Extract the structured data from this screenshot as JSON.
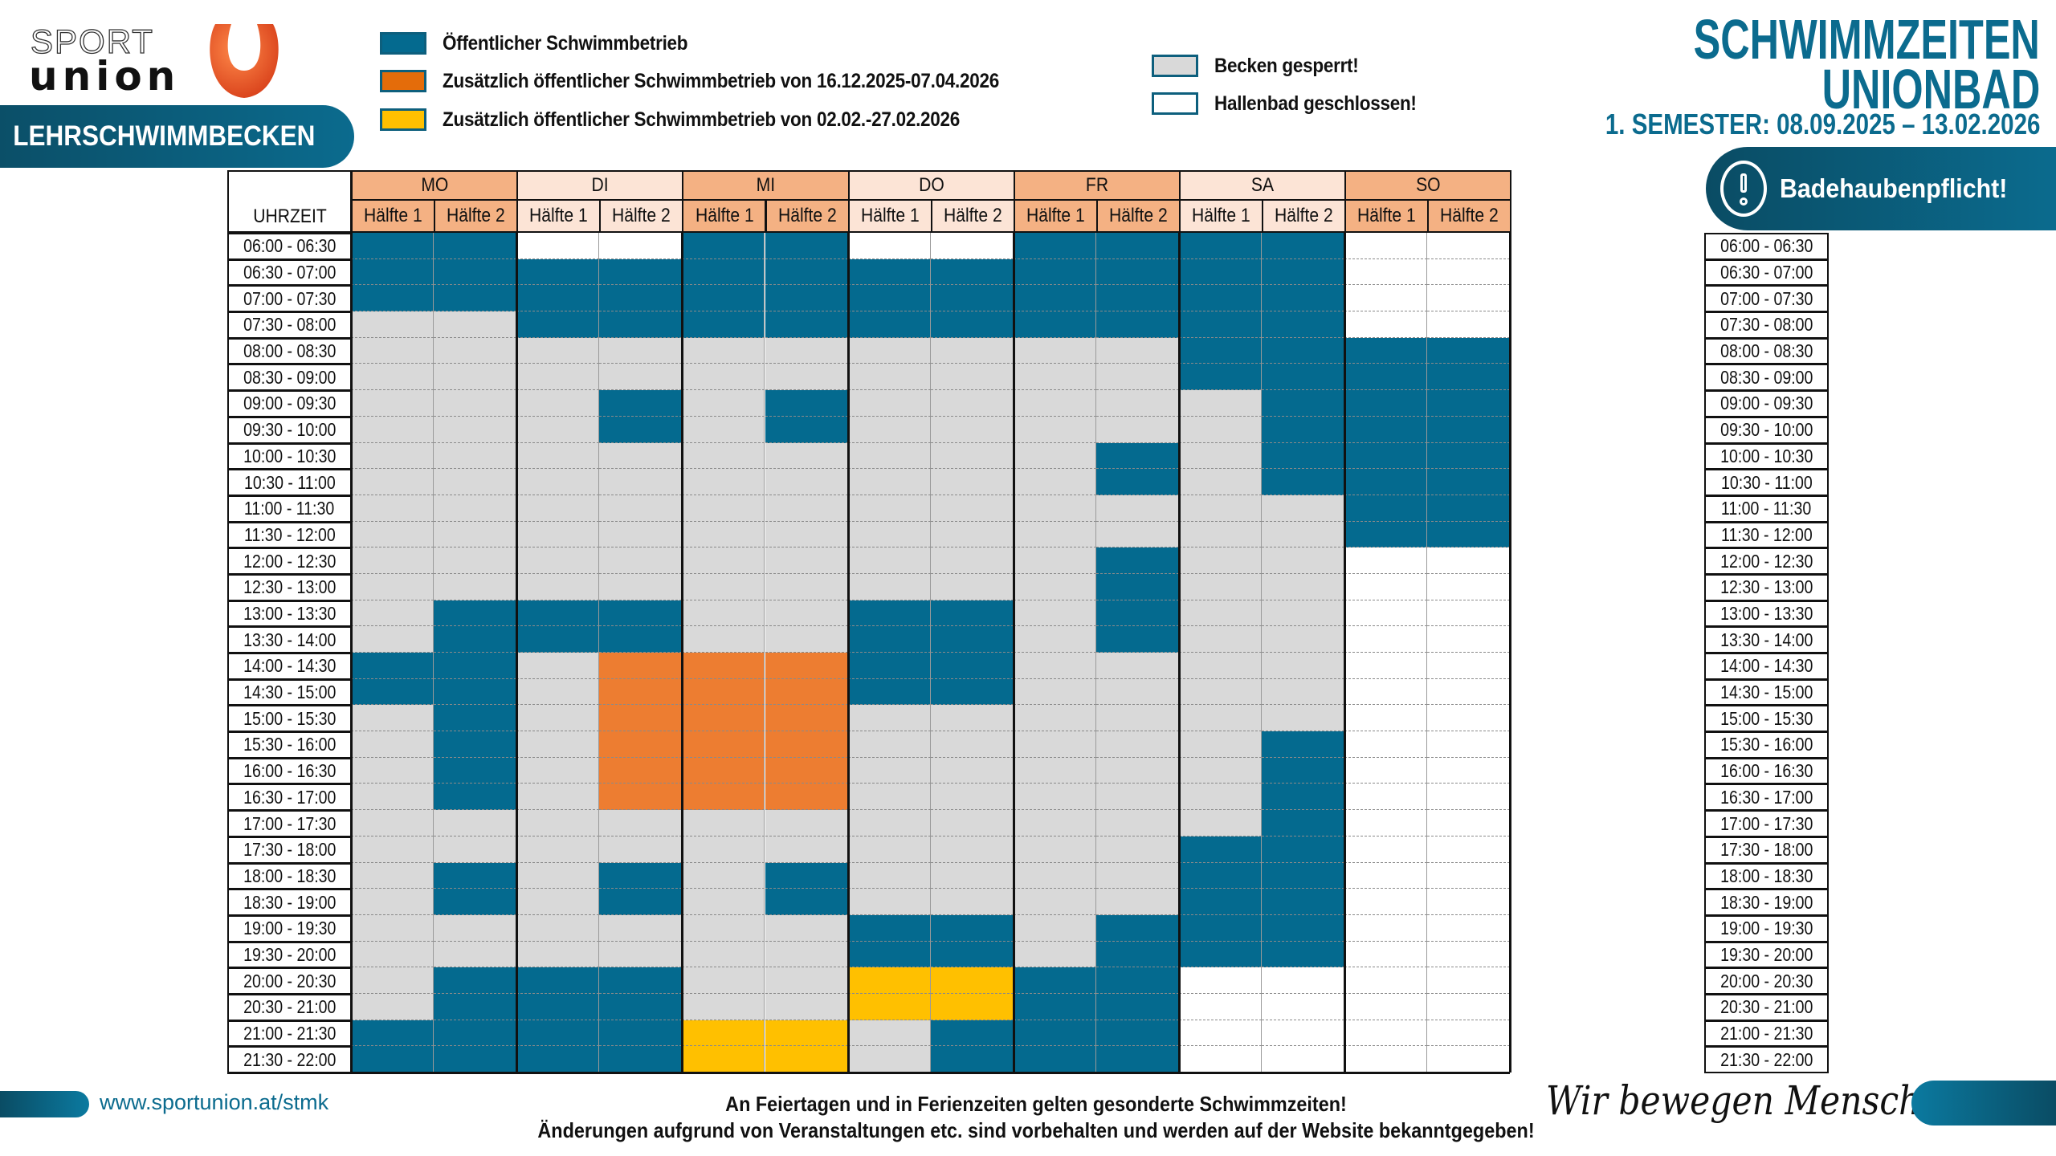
{
  "logo": {
    "line1": "SPORT",
    "line2": "union",
    "mark": "U"
  },
  "banner": {
    "label": "LEHRSCHWIMMBECKEN"
  },
  "legend": [
    {
      "code": "B",
      "label": "Öffentlicher Schwimmbetrieb",
      "color": "#046a8f"
    },
    {
      "code": "O",
      "label": "Zusätzlich öffentlicher Schwimmbetrieb von 16.12.2025-07.04.2026",
      "color": "#e46c0a"
    },
    {
      "code": "Y",
      "label": "Zusätzlich öffentlicher Schwimmbetrieb von 02.02.-27.02.2026",
      "color": "#ffc000"
    },
    {
      "code": "G",
      "label": "Becken gesperrt!",
      "color": "#d9d9d9"
    },
    {
      "code": "W",
      "label": "Hallenbad geschlossen!",
      "color": "#ffffff"
    }
  ],
  "cell_colors": {
    "B": "#046a8f",
    "O": "#ed7d31",
    "Y": "#ffc000",
    "G": "#d9d9d9",
    "W": "#ffffff"
  },
  "title": {
    "line1": "SCHWIMMZEITEN",
    "line2": "UNIONBAD",
    "semester": "1. SEMESTER: 08.09.2025 – 13.02.2026"
  },
  "badge": {
    "label": "Badehaubenpflicht!",
    "icon": "exclamation-circle-icon"
  },
  "schedule": {
    "time_header": "UHRZEIT",
    "days": [
      {
        "label": "MO",
        "color": "#f4b183"
      },
      {
        "label": "DI",
        "color": "#fce4d6"
      },
      {
        "label": "MI",
        "color": "#f4b183"
      },
      {
        "label": "DO",
        "color": "#fce4d6"
      },
      {
        "label": "FR",
        "color": "#f4b183"
      },
      {
        "label": "SA",
        "color": "#fce4d6"
      },
      {
        "label": "SO",
        "color": "#f4b183"
      }
    ],
    "halves": [
      "Hälfte 1",
      "Hälfte 2"
    ],
    "rows": [
      {
        "time": "06:00 - 06:30",
        "cells": "BBWWBBWWBBBBWW"
      },
      {
        "time": "06:30 - 07:00",
        "cells": "BBBBBBBBBBBBWW"
      },
      {
        "time": "07:00 - 07:30",
        "cells": "BBBBBBBBBBBBWW"
      },
      {
        "time": "07:30 - 08:00",
        "cells": "GGBBBBBBBBBBWW"
      },
      {
        "time": "08:00 - 08:30",
        "cells": "GGGGGGGGGGBBBB"
      },
      {
        "time": "08:30 - 09:00",
        "cells": "GGGGGGGGGGBBBB"
      },
      {
        "time": "09:00 - 09:30",
        "cells": "GGGBGBGGGGGBBB"
      },
      {
        "time": "09:30 - 10:00",
        "cells": "GGGBGBGGGGGBBB"
      },
      {
        "time": "10:00 - 10:30",
        "cells": "GGGGGGGGGBGBBB"
      },
      {
        "time": "10:30 - 11:00",
        "cells": "GGGGGGGGGBGBBB"
      },
      {
        "time": "11:00 - 11:30",
        "cells": "GGGGGGGGGGGGBB"
      },
      {
        "time": "11:30 - 12:00",
        "cells": "GGGGGGGGGGGGBB"
      },
      {
        "time": "12:00 - 12:30",
        "cells": "GGGGGGGGGBGGWW"
      },
      {
        "time": "12:30 - 13:00",
        "cells": "GGGGGGGGGBGGWW"
      },
      {
        "time": "13:00 - 13:30",
        "cells": "GBBBGGBBGBGGWW"
      },
      {
        "time": "13:30 - 14:00",
        "cells": "GBBBGGBBGBGGWW"
      },
      {
        "time": "14:00 - 14:30",
        "cells": "BBGOOOBBGGGGWW"
      },
      {
        "time": "14:30 - 15:00",
        "cells": "BBGOOOBBGGGGWW"
      },
      {
        "time": "15:00 - 15:30",
        "cells": "GBGOOOGGGGGGWW"
      },
      {
        "time": "15:30 - 16:00",
        "cells": "GBGOOOGGGGGBWW"
      },
      {
        "time": "16:00 - 16:30",
        "cells": "GBGOOOGGGGGBWW"
      },
      {
        "time": "16:30 - 17:00",
        "cells": "GBGOOOGGGGGBWW"
      },
      {
        "time": "17:00 - 17:30",
        "cells": "GGGGGGGGGGGBWW"
      },
      {
        "time": "17:30 - 18:00",
        "cells": "GGGGGGGGGGBBWW"
      },
      {
        "time": "18:00 - 18:30",
        "cells": "GBGBGBGGGGBBWW"
      },
      {
        "time": "18:30 - 19:00",
        "cells": "GBGBGBGGGGBBWW"
      },
      {
        "time": "19:00 - 19:30",
        "cells": "GGGGGGBBGBBBWW"
      },
      {
        "time": "19:30 - 20:00",
        "cells": "GGGGGGBBGBBBWW"
      },
      {
        "time": "20:00 - 20:30",
        "cells": "GBBBGGYYBBWWWW"
      },
      {
        "time": "20:30 - 21:00",
        "cells": "GBBBGGYYBBWWWW"
      },
      {
        "time": "21:00 - 21:30",
        "cells": "BBBBYYGBBBWWWW"
      },
      {
        "time": "21:30 - 22:00",
        "cells": "BBBBYYGBBBWWWW"
      }
    ]
  },
  "footer": {
    "url": "www.sportunion.at/stmk",
    "note1": "An Feiertagen und in Ferienzeiten gelten gesonderte Schwimmzeiten!",
    "note2": "Änderungen aufgrund von Veranstaltungen etc. sind vorbehalten und werden auf der Website bekanntgegeben!",
    "slogan": "Wir bewegen Menschen"
  }
}
